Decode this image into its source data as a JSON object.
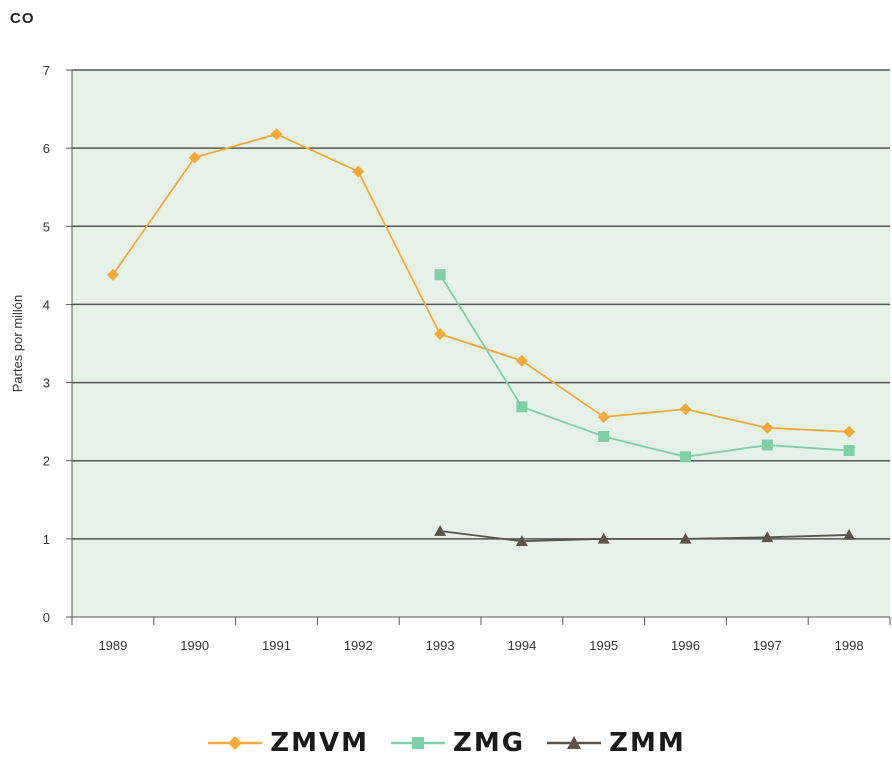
{
  "title": "CO",
  "chart_data": {
    "type": "line",
    "title": "CO",
    "xlabel": "",
    "ylabel": "Partes por millón",
    "categories": [
      "1989",
      "1990",
      "1991",
      "1992",
      "1993",
      "1994",
      "1995",
      "1996",
      "1997",
      "1998"
    ],
    "ylim": [
      0,
      7
    ],
    "yticks": [
      0,
      1,
      2,
      3,
      4,
      5,
      6,
      7
    ],
    "grid": true,
    "background_color": "#e6f2e8",
    "gridline_color": "#555555",
    "legend_position": "bottom",
    "series": [
      {
        "name": "ZMVM",
        "color": "#f5a93a",
        "marker": "diamond",
        "values": [
          4.38,
          5.88,
          6.18,
          5.7,
          3.62,
          3.28,
          2.56,
          2.66,
          2.42,
          2.37
        ]
      },
      {
        "name": "ZMG",
        "color": "#7fcfa7",
        "marker": "square",
        "values": [
          null,
          null,
          null,
          null,
          4.38,
          2.69,
          2.31,
          2.05,
          2.2,
          2.13
        ]
      },
      {
        "name": "ZMM",
        "color": "#5c534a",
        "marker": "triangle",
        "values": [
          null,
          null,
          null,
          null,
          1.1,
          0.97,
          1.0,
          1.0,
          1.02,
          1.05
        ]
      }
    ]
  }
}
